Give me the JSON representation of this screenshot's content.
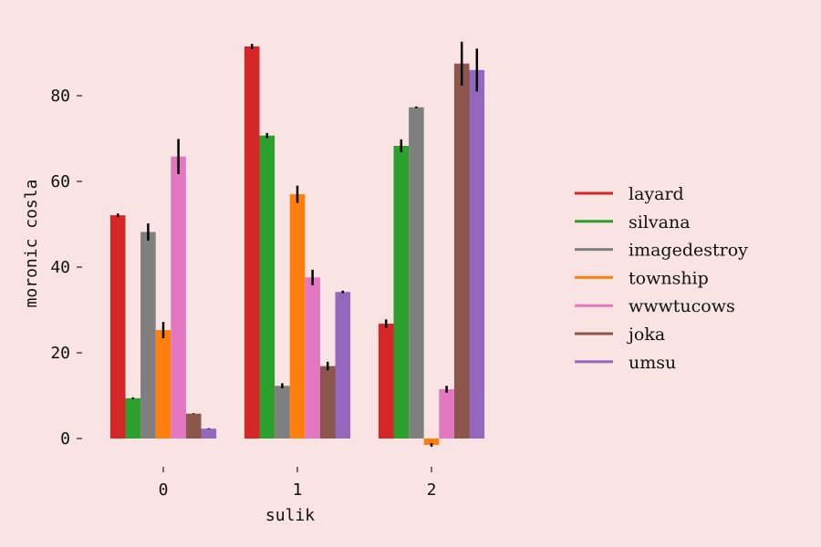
{
  "chart_data": {
    "type": "bar",
    "xlabel": "sulik",
    "ylabel": "moronic cosla",
    "categories": [
      "0",
      "1",
      "2"
    ],
    "ylim": [
      -2,
      93
    ],
    "yticks": [
      0,
      20,
      40,
      60,
      80
    ],
    "yticks_labels": [
      "0",
      "20",
      "40",
      "60",
      "80"
    ],
    "grid": false,
    "legend_position": "right",
    "series": [
      {
        "name": "layard",
        "color": "#d62728",
        "values": [
          52.1,
          91.5,
          26.8
        ],
        "errors": [
          0.4,
          0.6,
          1.0
        ]
      },
      {
        "name": "silvana",
        "color": "#2ca02c",
        "values": [
          9.4,
          70.7,
          68.3
        ],
        "errors": [
          0.2,
          0.6,
          1.5
        ]
      },
      {
        "name": "imagedestroy",
        "color": "#7f7f7f",
        "values": [
          48.2,
          12.3,
          77.3
        ],
        "errors": [
          2.0,
          0.6,
          0.2
        ]
      },
      {
        "name": "township",
        "color": "#ff7f0e",
        "values": [
          25.3,
          57.0,
          -1.5
        ],
        "errors": [
          1.9,
          2.0,
          0.4
        ]
      },
      {
        "name": "wwwtucows",
        "color": "#e377c2",
        "values": [
          65.8,
          37.6,
          11.5
        ],
        "errors": [
          4.1,
          1.8,
          0.8
        ]
      },
      {
        "name": "joka",
        "color": "#8c564b",
        "values": [
          5.8,
          16.9,
          87.5
        ],
        "errors": [
          0.1,
          1.0,
          5.1
        ]
      },
      {
        "name": "umsu",
        "color": "#9467bd",
        "values": [
          2.3,
          34.2,
          86.0
        ],
        "errors": [
          0.1,
          0.3,
          5.0
        ]
      }
    ]
  }
}
